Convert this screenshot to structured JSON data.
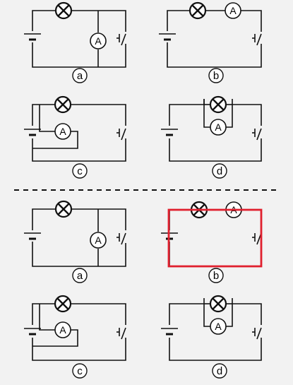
{
  "colors": {
    "background": "#f2f2f2",
    "wire": "#111111",
    "highlight": "#e0202e",
    "divider": "#111111"
  },
  "symbols": {
    "ammeter": "A",
    "lamp": "lamp-icon"
  },
  "question": {
    "labels": [
      "a",
      "b",
      "c",
      "d"
    ]
  },
  "answer": {
    "labels": [
      "a",
      "b",
      "c",
      "d"
    ],
    "selected": "b"
  }
}
